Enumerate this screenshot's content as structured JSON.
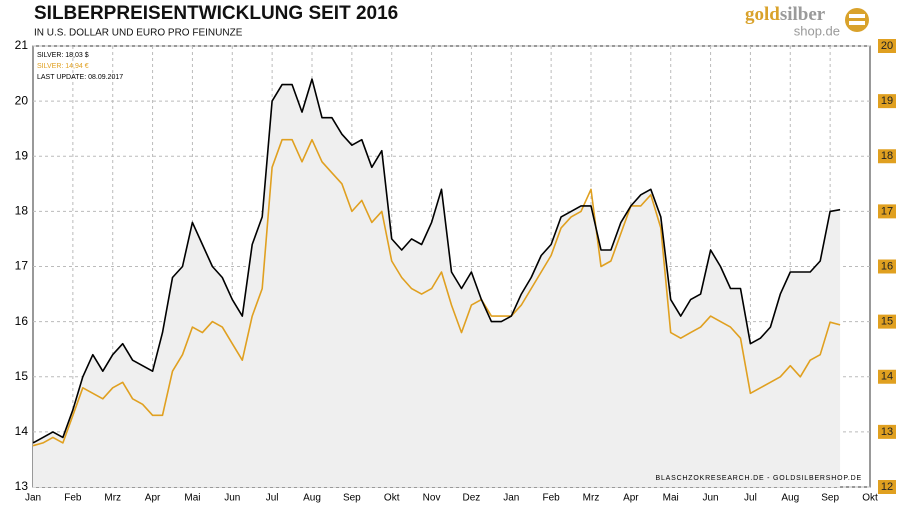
{
  "chart_data": {
    "type": "line",
    "title": "SILBERPREISENTWICKLUNG  SEIT 2016",
    "subtitle": "IN U.S. DOLLAR UND EURO PRO FEINUNZE",
    "logo": {
      "gold": "gold",
      "silber": "silber",
      "shop": "shop.de"
    },
    "last_update": "LAST UPDATE: 08.09.2017",
    "source": "BLASCHZOKRESEARCH.DE - GOLDSILBERSHOP.DE",
    "categories": [
      "Jan",
      null,
      null,
      null,
      "Feb",
      null,
      null,
      null,
      "Mrz",
      null,
      null,
      null,
      "Apr",
      null,
      null,
      null,
      "Mai",
      null,
      null,
      null,
      "Jun",
      null,
      null,
      null,
      "Jul",
      null,
      null,
      null,
      "Aug",
      null,
      null,
      null,
      "Sep",
      null,
      null,
      null,
      "Okt",
      null,
      null,
      null,
      "Nov",
      null,
      null,
      null,
      "Dez",
      null,
      null,
      null,
      "Jan",
      null,
      null,
      null,
      "Feb",
      null,
      null,
      null,
      "Mrz",
      null,
      null,
      null,
      "Apr",
      null,
      null,
      null,
      "Mai",
      null,
      null,
      null,
      "Jun",
      null,
      null,
      null,
      "Jul",
      null,
      null,
      null,
      "Aug",
      null,
      null,
      null,
      "Sep",
      null,
      null,
      null,
      "Okt"
    ],
    "series": [
      {
        "name": "SILVER: 18,03 $",
        "color": "#000000",
        "axis": "y",
        "fill": "#efefef",
        "values": [
          13.8,
          13.9,
          14.0,
          13.9,
          14.4,
          15.0,
          15.4,
          15.1,
          15.4,
          15.6,
          15.3,
          15.2,
          15.1,
          15.8,
          16.8,
          17.0,
          17.8,
          17.4,
          17.0,
          16.8,
          16.4,
          16.1,
          17.4,
          17.9,
          20.0,
          20.3,
          20.3,
          19.8,
          20.4,
          19.7,
          19.7,
          19.4,
          19.2,
          19.3,
          18.8,
          19.1,
          17.5,
          17.3,
          17.5,
          17.4,
          17.8,
          18.4,
          16.9,
          16.6,
          16.9,
          16.4,
          16.0,
          16.0,
          16.1,
          16.5,
          16.8,
          17.2,
          17.4,
          17.9,
          18.0,
          18.1,
          18.1,
          17.3,
          17.3,
          17.8,
          18.1,
          18.3,
          18.4,
          17.9,
          16.4,
          16.1,
          16.4,
          16.5,
          17.3,
          17.0,
          16.6,
          16.6,
          15.6,
          15.7,
          15.9,
          16.5,
          16.9,
          16.9,
          16.9,
          17.1,
          18.0,
          18.03,
          null,
          null,
          null
        ]
      },
      {
        "name": "SILVER: 14,94 €",
        "color": "#e0a020",
        "axis": "y2",
        "values": [
          12.75,
          12.8,
          12.9,
          12.8,
          13.3,
          13.8,
          13.7,
          13.6,
          13.8,
          13.9,
          13.6,
          13.5,
          13.3,
          13.3,
          14.1,
          14.4,
          14.9,
          14.8,
          15.0,
          14.9,
          14.6,
          14.3,
          15.1,
          15.6,
          17.8,
          18.3,
          18.3,
          17.9,
          18.3,
          17.9,
          17.7,
          17.5,
          17.0,
          17.2,
          16.8,
          17.0,
          16.1,
          15.8,
          15.6,
          15.5,
          15.6,
          15.9,
          15.3,
          14.8,
          15.3,
          15.4,
          15.1,
          15.1,
          15.1,
          15.3,
          15.6,
          15.9,
          16.2,
          16.7,
          16.9,
          17.0,
          17.4,
          16.0,
          16.1,
          16.6,
          17.1,
          17.1,
          17.3,
          16.7,
          14.8,
          14.7,
          14.8,
          14.9,
          15.1,
          15.0,
          14.9,
          14.7,
          13.7,
          13.8,
          13.9,
          14.0,
          14.2,
          14.0,
          14.3,
          14.4,
          14.99,
          14.94,
          null,
          null,
          null
        ]
      }
    ],
    "ylim": [
      13,
      21
    ],
    "yticks": [
      13,
      14,
      15,
      16,
      17,
      18,
      19,
      20,
      21
    ],
    "y2lim": [
      12,
      20
    ],
    "y2ticks": [
      12,
      13,
      14,
      15,
      16,
      17,
      18,
      19,
      20
    ],
    "grid": true
  }
}
